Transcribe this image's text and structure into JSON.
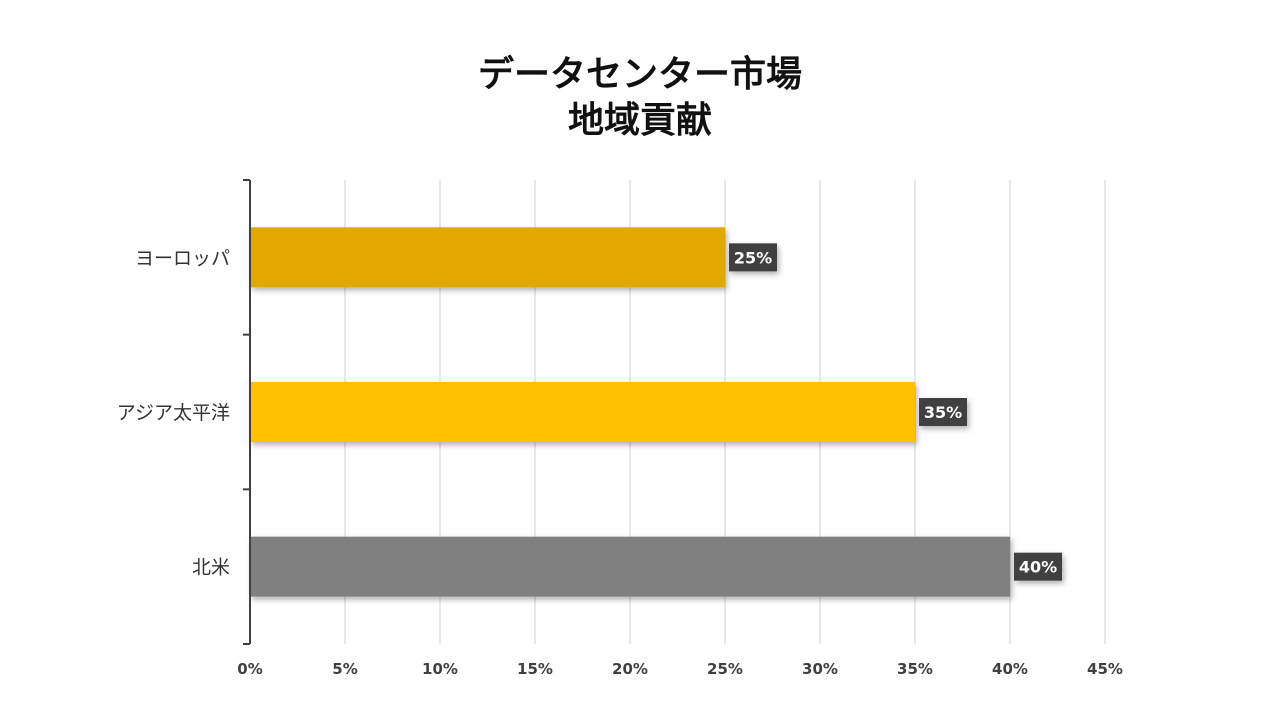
{
  "chart_data": {
    "type": "bar",
    "orientation": "horizontal",
    "title": [
      "データセンター市場",
      "地域貢献"
    ],
    "categories": [
      "ヨーロッパ",
      "アジア太平洋",
      "北米"
    ],
    "values": [
      25,
      35,
      40
    ],
    "data_labels": [
      "25%",
      "35%",
      "40%"
    ],
    "bar_colors": [
      "#E0A800",
      "#FFC000",
      "#808080"
    ],
    "xlim": [
      0,
      45
    ],
    "xticks": [
      0,
      5,
      10,
      15,
      20,
      25,
      30,
      35,
      40,
      45
    ],
    "xtick_labels": [
      "0%",
      "5%",
      "10%",
      "15%",
      "20%",
      "25%",
      "30%",
      "35%",
      "40%",
      "45%"
    ],
    "grid": true,
    "legend": "none",
    "label_box_color": "#404040"
  }
}
